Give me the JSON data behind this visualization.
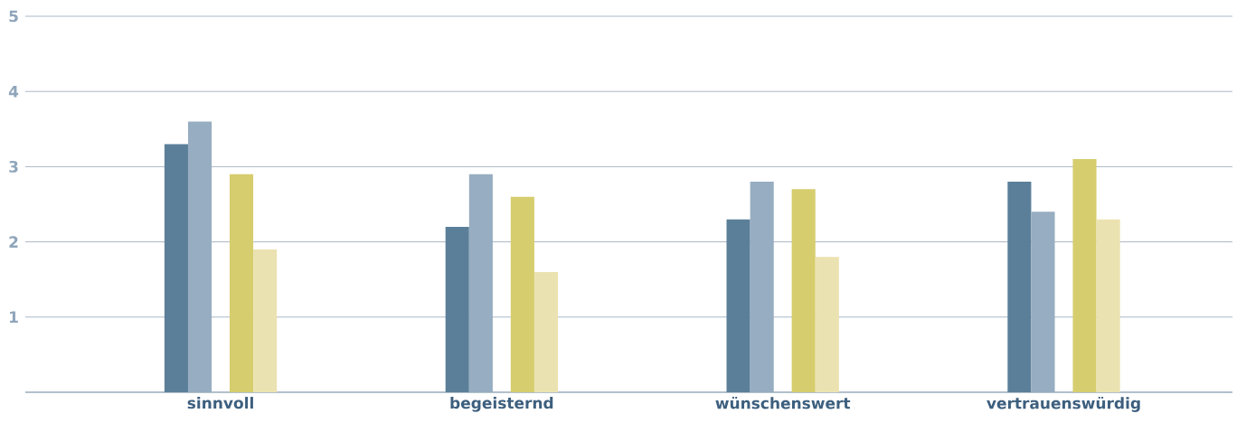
{
  "chart_data": {
    "type": "bar",
    "categories": [
      "sinnvoll",
      "begeisternd",
      "wünschenswert",
      "vertrauenswürdig"
    ],
    "series": [
      {
        "color": "#5b7f99",
        "values": [
          3.3,
          2.2,
          2.3,
          2.8
        ]
      },
      {
        "color": "#97adc1",
        "values": [
          3.6,
          2.9,
          2.8,
          2.4
        ]
      },
      {
        "color": "#d6cd6e",
        "values": [
          2.9,
          2.6,
          2.7,
          3.1
        ]
      },
      {
        "color": "#ebe2b1",
        "values": [
          1.9,
          1.6,
          1.8,
          2.3
        ]
      }
    ],
    "ylim": [
      0,
      5
    ],
    "yticks": [
      1,
      2,
      3,
      4,
      5
    ],
    "grid": "y"
  }
}
